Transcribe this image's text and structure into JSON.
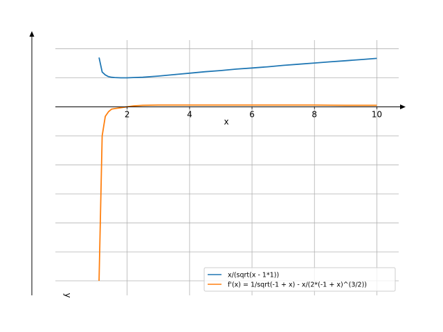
{
  "chart_data": {
    "type": "line",
    "xlabel": "x",
    "ylabel": "y",
    "xlim": [
      -0.3,
      10.7
    ],
    "ylim": [
      -6.5,
      2.3
    ],
    "x_ticks": [
      2,
      4,
      6,
      8,
      10
    ],
    "x_tick_labels": [
      "2",
      "4",
      "6",
      "8",
      "10"
    ],
    "y_gridlines": [
      -6,
      -5,
      -4,
      -3,
      -2,
      -1,
      1,
      2
    ],
    "grid": true,
    "legend_position": "lower-right",
    "series": [
      {
        "name": "x/(sqrt(x - 1*1))",
        "color": "#1f77b4",
        "x": [
          1.1,
          1.2,
          1.3,
          1.4,
          1.5,
          1.6,
          1.8,
          2.0,
          2.2,
          2.5,
          3.0,
          3.5,
          4.0,
          4.5,
          5.0,
          5.5,
          6.0,
          6.5,
          7.0,
          7.5,
          8.0,
          8.5,
          9.0,
          9.5,
          10.0
        ],
        "y": [
          1.7,
          1.2,
          1.1,
          1.04,
          1.02,
          1.01,
          1.0,
          1.0,
          1.01,
          1.02,
          1.06,
          1.11,
          1.16,
          1.21,
          1.25,
          1.3,
          1.34,
          1.38,
          1.43,
          1.47,
          1.51,
          1.55,
          1.59,
          1.63,
          1.67
        ]
      },
      {
        "name": "f'(x) = 1/sqrt(-1 + x) - x/(2*(-1 + x)^(3/2))",
        "color": "#ff7f0e",
        "x": [
          1.1,
          1.2,
          1.3,
          1.4,
          1.5,
          1.6,
          1.8,
          2.0,
          2.2,
          2.5,
          3.0,
          3.5,
          4.0,
          4.5,
          5.0,
          5.5,
          6.0,
          6.5,
          7.0,
          7.5,
          8.0,
          8.5,
          9.0,
          9.5,
          10.0
        ],
        "y": [
          -6.0,
          -1.0,
          -0.33,
          -0.17,
          -0.08,
          -0.06,
          -0.03,
          0.0,
          0.03,
          0.05,
          0.06,
          0.06,
          0.06,
          0.06,
          0.06,
          0.06,
          0.06,
          0.06,
          0.06,
          0.06,
          0.06,
          0.055,
          0.05,
          0.05,
          0.05
        ]
      }
    ]
  }
}
